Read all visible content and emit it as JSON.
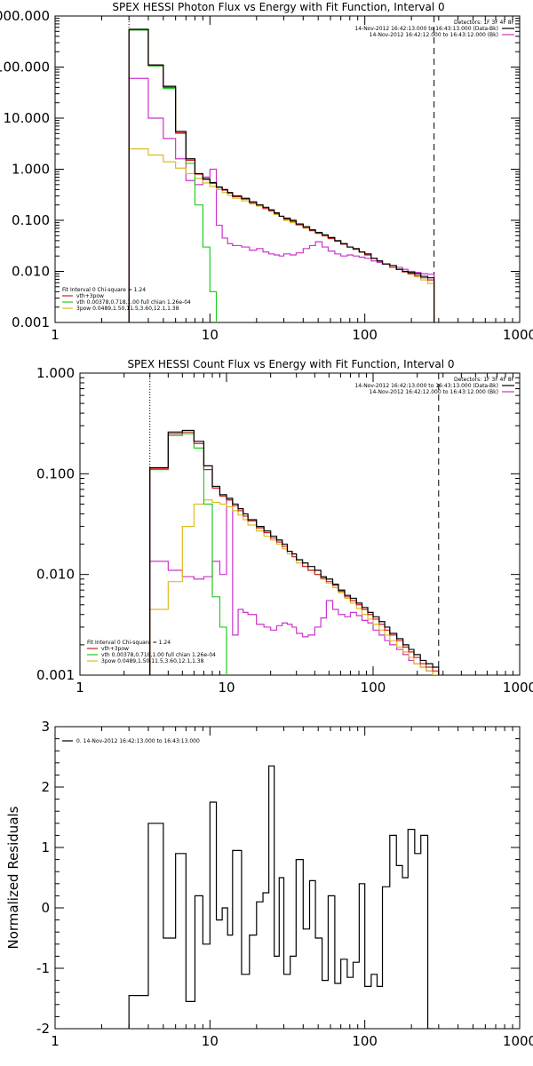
{
  "chart_data": [
    {
      "type": "line",
      "step": true,
      "scale": {
        "x": "log",
        "y": "log"
      },
      "title": "SPEX HESSI Photon Flux vs Energy with Fit Function, Interval 0",
      "xlabel": "",
      "ylabel": "",
      "xlim": [
        1,
        1000
      ],
      "ylim": [
        0.001,
        1000
      ],
      "xticks": [
        1,
        10,
        100,
        1000
      ],
      "xtick_labels": [
        "1",
        "10",
        "100",
        "1000"
      ],
      "yticks": [
        0.001,
        0.01,
        0.1,
        1,
        10,
        100,
        1000
      ],
      "ytick_labels": [
        "0.001",
        "0.010",
        "0.100",
        "1.000",
        "10.000",
        "100.000",
        "1000.000"
      ],
      "vlines": [
        {
          "x": 3,
          "style": "dotted"
        },
        {
          "x": 280,
          "style": "dashed"
        }
      ],
      "legend_right": {
        "position": "top-right",
        "header": "Detectors: 1F 3F 4F 8F",
        "lines": [
          {
            "text": "14-Nov-2012 16:42:13.000 to 16:43:13.000 (Data-Bk)",
            "color": "#000000"
          },
          {
            "text": "14-Nov-2012 16:42:12.000 to 16:43:12.000 (Bk)",
            "color": "#cc33cc"
          }
        ]
      },
      "legend_left": {
        "position": "bottom-left",
        "header": "Fit Interval 0   Chi-square = 1.24",
        "lines": [
          {
            "text": "vth+3pow",
            "color": "#cc2222"
          },
          {
            "text": "vth 0.00378,0.718,1.00  full chian 1.26e-04",
            "color": "#22cc22"
          },
          {
            "text": "3pow 0.0489,1.50,11.5,3.60,12.1,1.38",
            "color": "#ddbb22"
          }
        ]
      },
      "edges": [
        3,
        4,
        5,
        6,
        7,
        8,
        9,
        10,
        11,
        12,
        13,
        14,
        16,
        18,
        20,
        22,
        24,
        26,
        28,
        30,
        33,
        36,
        40,
        44,
        48,
        53,
        58,
        64,
        70,
        77,
        84,
        92,
        100,
        110,
        120,
        130,
        145,
        160,
        175,
        190,
        210,
        230,
        255,
        280
      ],
      "series": [
        {
          "color": "#000000",
          "values": [
            550,
            110,
            42,
            5.5,
            1.6,
            0.82,
            0.65,
            0.55,
            0.45,
            0.4,
            0.35,
            0.3,
            0.27,
            0.23,
            0.2,
            0.18,
            0.16,
            0.14,
            0.12,
            0.11,
            0.1,
            0.085,
            0.075,
            0.065,
            0.058,
            0.052,
            0.046,
            0.04,
            0.035,
            0.03,
            0.028,
            0.024,
            0.022,
            0.018,
            0.016,
            0.014,
            0.013,
            0.011,
            0.01,
            0.0095,
            0.009,
            0.008,
            0.0075
          ]
        },
        {
          "color": "#cc2222",
          "values": [
            540,
            108,
            40,
            5.2,
            1.5,
            0.8,
            0.63,
            0.53,
            0.44,
            0.39,
            0.34,
            0.29,
            0.26,
            0.22,
            0.2,
            0.17,
            0.155,
            0.135,
            0.12,
            0.105,
            0.095,
            0.082,
            0.072,
            0.063,
            0.056,
            0.05,
            0.044,
            0.039,
            0.034,
            0.03,
            0.027,
            0.024,
            0.021,
            0.018,
            0.016,
            0.014,
            0.012,
            0.011,
            0.0098,
            0.009,
            0.0082,
            0.0075,
            0.0068
          ]
        },
        {
          "color": "#22cc22",
          "values": [
            530,
            105,
            38,
            5.0,
            1.3,
            0.2,
            0.03,
            0.004,
            0.0004,
            4e-05,
            4e-06,
            4e-07,
            4e-08,
            4e-09
          ]
        },
        {
          "color": "#ddbb22",
          "values": [
            2.5,
            1.9,
            1.4,
            1.05,
            0.82,
            0.66,
            0.54,
            0.46,
            0.4,
            0.35,
            0.31,
            0.27,
            0.24,
            0.21,
            0.19,
            0.17,
            0.15,
            0.13,
            0.12,
            0.1,
            0.09,
            0.08,
            0.07,
            0.062,
            0.055,
            0.049,
            0.044,
            0.039,
            0.034,
            0.03,
            0.027,
            0.024,
            0.021,
            0.018,
            0.016,
            0.014,
            0.012,
            0.011,
            0.0098,
            0.0088,
            0.0078,
            0.0068,
            0.0058
          ]
        },
        {
          "color": "#cc33cc",
          "values": [
            60,
            10,
            4.0,
            1.6,
            0.6,
            0.5,
            0.7,
            1.0,
            0.08,
            0.045,
            0.035,
            0.032,
            0.03,
            0.026,
            0.028,
            0.024,
            0.022,
            0.021,
            0.02,
            0.022,
            0.021,
            0.023,
            0.028,
            0.032,
            0.038,
            0.03,
            0.025,
            0.022,
            0.02,
            0.021,
            0.02,
            0.019,
            0.018,
            0.016,
            0.015,
            0.014,
            0.013,
            0.012,
            0.011,
            0.01,
            0.0095,
            0.009,
            0.0088
          ]
        }
      ]
    },
    {
      "type": "line",
      "step": true,
      "scale": {
        "x": "log",
        "y": "log"
      },
      "title": "SPEX HESSI Count Flux vs Energy with Fit Function, Interval 0",
      "xlabel": "",
      "ylabel": "",
      "xlim": [
        1,
        1000
      ],
      "ylim": [
        0.001,
        1.0
      ],
      "xticks": [
        1,
        10,
        100,
        1000
      ],
      "xtick_labels": [
        "1",
        "10",
        "100",
        "1000"
      ],
      "yticks": [
        0.001,
        0.01,
        0.1,
        1.0
      ],
      "ytick_labels": [
        "0.001",
        "0.010",
        "0.100",
        "1.000"
      ],
      "vlines": [
        {
          "x": 3,
          "style": "dotted"
        },
        {
          "x": 280,
          "style": "dashed"
        }
      ],
      "legend_right": {
        "position": "top-right",
        "header": "Detectors: 1F 3F 4F 8F",
        "lines": [
          {
            "text": "14-Nov-2012 16:42:13.000 to 16:43:13.000 (Data-Bk)",
            "color": "#000000"
          },
          {
            "text": "14-Nov-2012 16:42:12.000 to 16:43:12.000 (Bk)",
            "color": "#cc33cc"
          }
        ]
      },
      "legend_left": {
        "position": "bottom-left",
        "header": "Fit Interval 0   Chi-square = 1.24",
        "lines": [
          {
            "text": "vth+3pow",
            "color": "#cc2222"
          },
          {
            "text": "vth 0.00378,0.718,1.00  full chian 1.26e-04",
            "color": "#22cc22"
          },
          {
            "text": "3pow 0.0489,1.50,11.5,3.60,12.1,1.38",
            "color": "#ddbb22"
          }
        ]
      },
      "edges": [
        3,
        4,
        5,
        6,
        7,
        8,
        9,
        10,
        11,
        12,
        13,
        14,
        16,
        18,
        20,
        22,
        24,
        26,
        28,
        30,
        33,
        36,
        40,
        44,
        48,
        53,
        58,
        64,
        70,
        77,
        84,
        92,
        100,
        110,
        120,
        130,
        145,
        160,
        175,
        190,
        210,
        230,
        255,
        280
      ],
      "series": [
        {
          "color": "#000000",
          "values": [
            0.115,
            0.26,
            0.27,
            0.21,
            0.12,
            0.075,
            0.062,
            0.057,
            0.05,
            0.045,
            0.04,
            0.035,
            0.03,
            0.027,
            0.024,
            0.022,
            0.02,
            0.017,
            0.016,
            0.014,
            0.013,
            0.012,
            0.011,
            0.0095,
            0.009,
            0.008,
            0.007,
            0.0062,
            0.0058,
            0.0052,
            0.0047,
            0.0042,
            0.0038,
            0.0034,
            0.003,
            0.0026,
            0.0023,
            0.002,
            0.0018,
            0.0016,
            0.0014,
            0.0013,
            0.0012
          ]
        },
        {
          "color": "#cc2222",
          "values": [
            0.112,
            0.25,
            0.26,
            0.2,
            0.11,
            0.072,
            0.06,
            0.055,
            0.048,
            0.043,
            0.038,
            0.034,
            0.029,
            0.026,
            0.023,
            0.021,
            0.019,
            0.017,
            0.015,
            0.014,
            0.012,
            0.011,
            0.01,
            0.0092,
            0.0085,
            0.0078,
            0.0068,
            0.006,
            0.0055,
            0.005,
            0.0045,
            0.004,
            0.0036,
            0.0032,
            0.0028,
            0.0025,
            0.0022,
            0.0019,
            0.0017,
            0.0015,
            0.0013,
            0.0012,
            0.0011
          ]
        },
        {
          "color": "#22cc22",
          "values": [
            0.11,
            0.24,
            0.25,
            0.18,
            0.05,
            0.006,
            0.003,
            0.0009,
            0.0005,
            0.0003
          ]
        },
        {
          "color": "#ddbb22",
          "values": [
            0.0045,
            0.0085,
            0.03,
            0.05,
            0.055,
            0.052,
            0.05,
            0.047,
            0.043,
            0.039,
            0.035,
            0.031,
            0.027,
            0.024,
            0.022,
            0.02,
            0.018,
            0.016,
            0.015,
            0.013,
            0.012,
            0.011,
            0.01,
            0.009,
            0.0082,
            0.0074,
            0.0066,
            0.0058,
            0.0052,
            0.0046,
            0.004,
            0.0036,
            0.0032,
            0.0028,
            0.0025,
            0.0022,
            0.0019,
            0.0017,
            0.0015,
            0.0013,
            0.0012,
            0.0011,
            0.001
          ]
        },
        {
          "color": "#cc33cc",
          "values": [
            0.0135,
            0.011,
            0.0095,
            0.009,
            0.0095,
            0.0135,
            0.01,
            0.055,
            0.0025,
            0.0045,
            0.0042,
            0.004,
            0.0032,
            0.003,
            0.0028,
            0.0031,
            0.0033,
            0.0032,
            0.003,
            0.0026,
            0.0024,
            0.0025,
            0.003,
            0.0037,
            0.0055,
            0.0045,
            0.004,
            0.0038,
            0.0042,
            0.0039,
            0.0035,
            0.0033,
            0.0028,
            0.0025,
            0.0022,
            0.002,
            0.0018,
            0.0016,
            0.0014,
            0.0013,
            0.0012,
            0.0011,
            0.001
          ]
        }
      ]
    },
    {
      "type": "line",
      "step": true,
      "scale": {
        "x": "log",
        "y": "linear"
      },
      "title": "",
      "xlabel": "",
      "ylabel": "Normalized Residuals",
      "xlim": [
        1,
        1000
      ],
      "ylim": [
        -2,
        3
      ],
      "xticks": [
        1,
        10,
        100,
        1000
      ],
      "xtick_labels": [
        "1",
        "10",
        "100",
        "1000"
      ],
      "yticks": [
        -2,
        -1,
        0,
        1,
        2,
        3
      ],
      "ytick_labels": [
        "-2",
        "-1",
        "0",
        "1",
        "2",
        "3"
      ],
      "legend_left": {
        "position": "top-left",
        "header": "",
        "lines": [
          {
            "text": "0. 14-Nov-2012 16:42:13.000 to 16:43:13.000",
            "color": "#000000"
          }
        ]
      },
      "edges": [
        3,
        4,
        5,
        6,
        7,
        8,
        9,
        10,
        11,
        12,
        13,
        14,
        16,
        18,
        20,
        22,
        24,
        26,
        28,
        30,
        33,
        36,
        40,
        44,
        48,
        53,
        58,
        64,
        70,
        77,
        84,
        92,
        100,
        110,
        120,
        130,
        145,
        160,
        175,
        190,
        210,
        230,
        255,
        280
      ],
      "series": [
        {
          "color": "#000000",
          "values": [
            -1.45,
            1.4,
            -0.5,
            0.9,
            -1.55,
            0.2,
            -0.6,
            1.75,
            -0.2,
            0.0,
            -0.45,
            0.95,
            -1.1,
            -0.45,
            0.1,
            0.25,
            2.35,
            -0.8,
            0.5,
            -1.1,
            -0.8,
            0.8,
            -0.35,
            0.45,
            -0.5,
            -1.2,
            0.2,
            -1.25,
            -0.85,
            -1.15,
            -0.9,
            0.4,
            -1.3,
            -1.1,
            -1.3,
            0.35,
            1.2,
            0.7,
            0.5,
            1.3,
            0.9,
            1.2,
            -2.0
          ]
        }
      ]
    }
  ]
}
